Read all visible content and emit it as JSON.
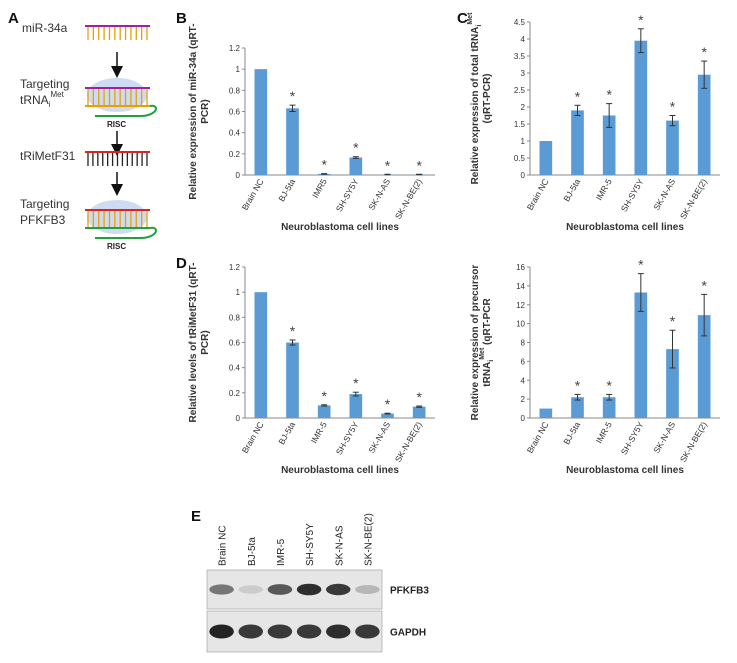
{
  "panels": {
    "A": "A",
    "B": "B",
    "C": "C",
    "D": "D",
    "E": "E"
  },
  "schema": {
    "steps": [
      {
        "label": "miR-34a"
      },
      {
        "label_line1": "Targeting",
        "label_line2": "tRNA",
        "label_sub": "i",
        "label_sup": "Met",
        "complex": "RISC"
      },
      {
        "label": "tRiMetF31"
      },
      {
        "label_line1": "Targeting",
        "label_line2": "PFKFB3",
        "complex": "RISC"
      }
    ]
  },
  "chart_data": [
    {
      "id": "B",
      "type": "bar",
      "ylabel": "Relative expression of miR-34a (qRT-PCR)",
      "ylabel_line1": "Relative expression of miR-34a (qRT-",
      "ylabel_line2": "PCR)",
      "xlabel": "Neuroblastoma cell lines",
      "categories": [
        "Brain NC",
        "BJ-5ta",
        "IMR5",
        "SH-SY5Y",
        "SK-N-AS",
        "SK-N-BE(2)"
      ],
      "values": [
        1.0,
        0.63,
        0.01,
        0.165,
        0.005,
        0.005
      ],
      "errors": [
        0,
        0.03,
        0.003,
        0.008,
        0.002,
        0.002
      ],
      "significant": [
        false,
        true,
        true,
        true,
        true,
        true
      ],
      "ylim": [
        0,
        1.2
      ],
      "yticks": [
        0,
        0.2,
        0.4,
        0.6,
        0.8,
        1,
        1.2
      ],
      "color": "#5b9bd5"
    },
    {
      "id": "C",
      "type": "bar",
      "ylabel": "Relative expression of total tRNAiMet (qRT-PCR)",
      "ylabel_line1": "Relative expression of total tRNA",
      "ylabel_sub": "i",
      "ylabel_sup": "Met",
      "ylabel_line2": "(qRT-PCR)",
      "xlabel": "Neuroblastoma cell lines",
      "categories": [
        "Brain NC",
        "BJ-5ta",
        "IMR-5",
        "SH-SY5Y",
        "SK-N-AS",
        "SK-N-BE(2)"
      ],
      "values": [
        1.0,
        1.9,
        1.75,
        3.95,
        1.6,
        2.95
      ],
      "errors": [
        0,
        0.15,
        0.35,
        0.35,
        0.15,
        0.4
      ],
      "significant": [
        false,
        true,
        true,
        true,
        true,
        true
      ],
      "ylim": [
        0,
        4.5
      ],
      "yticks": [
        0,
        0.5,
        1,
        1.5,
        2,
        2.5,
        3,
        3.5,
        4,
        4.5
      ],
      "color": "#5b9bd5"
    },
    {
      "id": "D",
      "type": "bar",
      "ylabel": "Relative levels of tRiMetF31 (qRT-PCR)",
      "ylabel_line1": "Relative levels of tRiMetF31 (qRT-",
      "ylabel_line2": "PCR)",
      "xlabel": "Neuroblastoma cell lines",
      "categories": [
        "Brain NC",
        "BJ-5ta",
        "IMR-5",
        "SH-SY5Y",
        "SK-N-AS",
        "SK-N-BE(2)"
      ],
      "values": [
        1.0,
        0.6,
        0.1,
        0.19,
        0.035,
        0.09
      ],
      "errors": [
        0,
        0.02,
        0.005,
        0.015,
        0.003,
        0.005
      ],
      "significant": [
        false,
        true,
        true,
        true,
        true,
        true
      ],
      "ylim": [
        0,
        1.2
      ],
      "yticks": [
        0,
        0.2,
        0.4,
        0.6,
        0.8,
        1,
        1.2
      ],
      "color": "#5b9bd5"
    },
    {
      "id": "D2",
      "type": "bar",
      "ylabel": "Relative expression of precursor tRNAiMet (qRT-PCR",
      "ylabel_line1": "Relative expression of precursor",
      "ylabel_line2": "tRNA",
      "ylabel_sub": "i",
      "ylabel_sup": "Met",
      "ylabel_line2_tail": " (qRT-PCR",
      "xlabel": "Neuroblastoma cell lines",
      "categories": [
        "Brain NC",
        "BJ-5ta",
        "IMR-5",
        "SH-SY5Y",
        "SK-N-AS",
        "SK-N-BE(2)"
      ],
      "values": [
        1.0,
        2.2,
        2.2,
        13.3,
        7.3,
        10.9
      ],
      "errors": [
        0,
        0.3,
        0.3,
        2.0,
        2.0,
        2.2
      ],
      "significant": [
        false,
        true,
        true,
        true,
        true,
        true
      ],
      "ylim": [
        0,
        16
      ],
      "yticks": [
        0,
        2,
        4,
        6,
        8,
        10,
        12,
        14,
        16
      ],
      "color": "#5b9bd5"
    }
  ],
  "blot": {
    "lanes": [
      "Brain NC",
      "BJ-5ta",
      "IMR-5",
      "SH-SY5Y",
      "SK-N-AS",
      "SK-N-BE(2)"
    ],
    "rows": [
      {
        "label": "PFKFB3",
        "intensity": [
          0.55,
          0.15,
          0.7,
          0.9,
          0.85,
          0.25
        ]
      },
      {
        "label": "GAPDH",
        "intensity": [
          0.95,
          0.85,
          0.85,
          0.85,
          0.9,
          0.85
        ]
      }
    ]
  }
}
